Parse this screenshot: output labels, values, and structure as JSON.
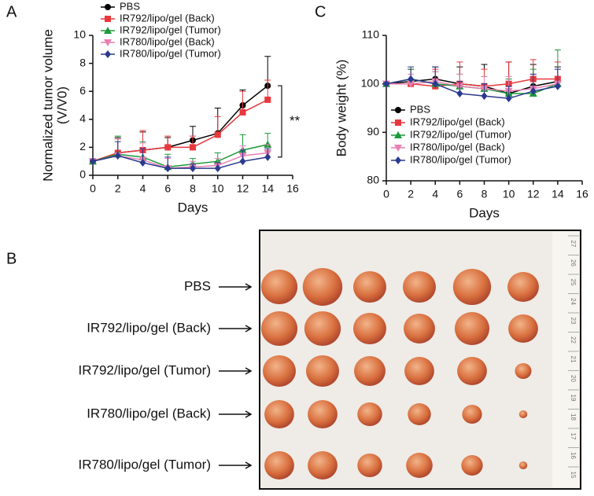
{
  "chart_data": [
    {
      "type": "line",
      "panel_label": "A",
      "ylabel": [
        "Normalized tumor volume",
        "(V/V0)"
      ],
      "xlabel": "Days",
      "x": [
        0,
        2,
        4,
        6,
        8,
        10,
        12,
        14
      ],
      "xlim": [
        0,
        16
      ],
      "xticks": [
        0,
        2,
        4,
        6,
        8,
        10,
        12,
        14,
        16
      ],
      "ylim": [
        0,
        10
      ],
      "yticks": [
        0,
        2,
        4,
        6,
        8,
        10
      ],
      "legend": "upper left",
      "annotation": "**",
      "series": [
        {
          "name": "PBS",
          "color": "#000000",
          "marker": "circle",
          "values": [
            1,
            1.6,
            1.8,
            2.0,
            2.5,
            3.0,
            5.0,
            6.4
          ],
          "errors": [
            0.1,
            1.1,
            1.3,
            0.7,
            1.0,
            1.8,
            1.1,
            2.1
          ]
        },
        {
          "name": "IR792/lipo/gel (Back)",
          "color": "#e8383d",
          "marker": "square",
          "values": [
            1,
            1.6,
            1.8,
            2.0,
            2.0,
            2.9,
            4.5,
            5.4
          ],
          "errors": [
            0.1,
            1.0,
            1.4,
            0.8,
            0.8,
            1.3,
            1.5,
            1.4
          ]
        },
        {
          "name": "IR792/lipo/gel (Tumor)",
          "color": "#1a9a3a",
          "marker": "triangle-up",
          "values": [
            1,
            1.5,
            1.3,
            0.6,
            0.8,
            1.0,
            1.8,
            2.2
          ],
          "errors": [
            0.1,
            1.3,
            1.1,
            0.9,
            0.4,
            0.6,
            1.1,
            0.8
          ]
        },
        {
          "name": "IR780/lipo/gel (Back)",
          "color": "#e87fb0",
          "marker": "triangle-down",
          "values": [
            1,
            1.4,
            1.1,
            0.5,
            0.6,
            0.7,
            1.4,
            1.6
          ],
          "errors": [
            0.1,
            1.2,
            1.2,
            0.7,
            0.4,
            0.5,
            0.7,
            0.6
          ]
        },
        {
          "name": "IR780/lipo/gel (Tumor)",
          "color": "#2b3a8f",
          "marker": "diamond",
          "values": [
            1,
            1.4,
            0.9,
            0.5,
            0.5,
            0.5,
            1.0,
            1.3
          ],
          "errors": [
            0.1,
            1.0,
            1.0,
            0.8,
            0.3,
            0.4,
            0.8,
            0.6
          ]
        }
      ]
    },
    {
      "type": "line",
      "panel_label": "C",
      "ylabel": [
        "Body weight (%)"
      ],
      "xlabel": "Days",
      "x": [
        0,
        2,
        4,
        6,
        8,
        10,
        12,
        14
      ],
      "xlim": [
        0,
        16
      ],
      "xticks": [
        0,
        2,
        4,
        6,
        8,
        10,
        12,
        14,
        16
      ],
      "ylim": [
        80,
        110
      ],
      "yticks": [
        80,
        90,
        100,
        110
      ],
      "legend": "center right",
      "series": [
        {
          "name": "PBS",
          "color": "#000000",
          "marker": "circle",
          "values": [
            100,
            100.5,
            101,
            100,
            99.5,
            98,
            99.5,
            100.5
          ],
          "errors": [
            0.3,
            2.5,
            2.5,
            3.5,
            4.5,
            6.5,
            4.5,
            3
          ]
        },
        {
          "name": "IR792/lipo/gel (Back)",
          "color": "#e8383d",
          "marker": "square",
          "values": [
            100,
            100,
            99.5,
            100,
            99.5,
            100,
            101,
            101
          ],
          "errors": [
            0.3,
            3,
            3.5,
            4.5,
            3.5,
            4.5,
            4,
            3.5
          ]
        },
        {
          "name": "IR792/lipo/gel (Tumor)",
          "color": "#1a9a3a",
          "marker": "triangle-up",
          "values": [
            100,
            101,
            100,
            99.5,
            99,
            98,
            98,
            100
          ],
          "errors": [
            0.3,
            2,
            2.5,
            2.5,
            2.5,
            3,
            5,
            7
          ]
        },
        {
          "name": "IR780/lipo/gel (Back)",
          "color": "#e87fb0",
          "marker": "triangle-down",
          "values": [
            100,
            100,
            100.5,
            99.5,
            99,
            98.5,
            99,
            100
          ],
          "errors": [
            0.3,
            2,
            2,
            2.5,
            2.5,
            3,
            3,
            3
          ]
        },
        {
          "name": "IR780/lipo/gel (Tumor)",
          "color": "#2b3a8f",
          "marker": "diamond",
          "values": [
            100,
            101,
            100,
            98,
            97.5,
            97,
            98.5,
            99.5
          ],
          "errors": [
            0.3,
            2.5,
            3.5,
            2.5,
            2.5,
            2.5,
            3.5,
            3.5
          ]
        }
      ]
    }
  ],
  "photo": {
    "panel_label": "B",
    "row_labels": [
      "PBS",
      "IR792/lipo/gel (Back)",
      "IR792/lipo/gel (Tumor)",
      "IR780/lipo/gel (Back)",
      "IR780/lipo/gel (Tumor)"
    ],
    "ruler_labels": [
      "27",
      "26",
      "25",
      "24",
      "23",
      "22",
      "21",
      "20",
      "19",
      "18",
      "17",
      "16",
      "15"
    ]
  }
}
